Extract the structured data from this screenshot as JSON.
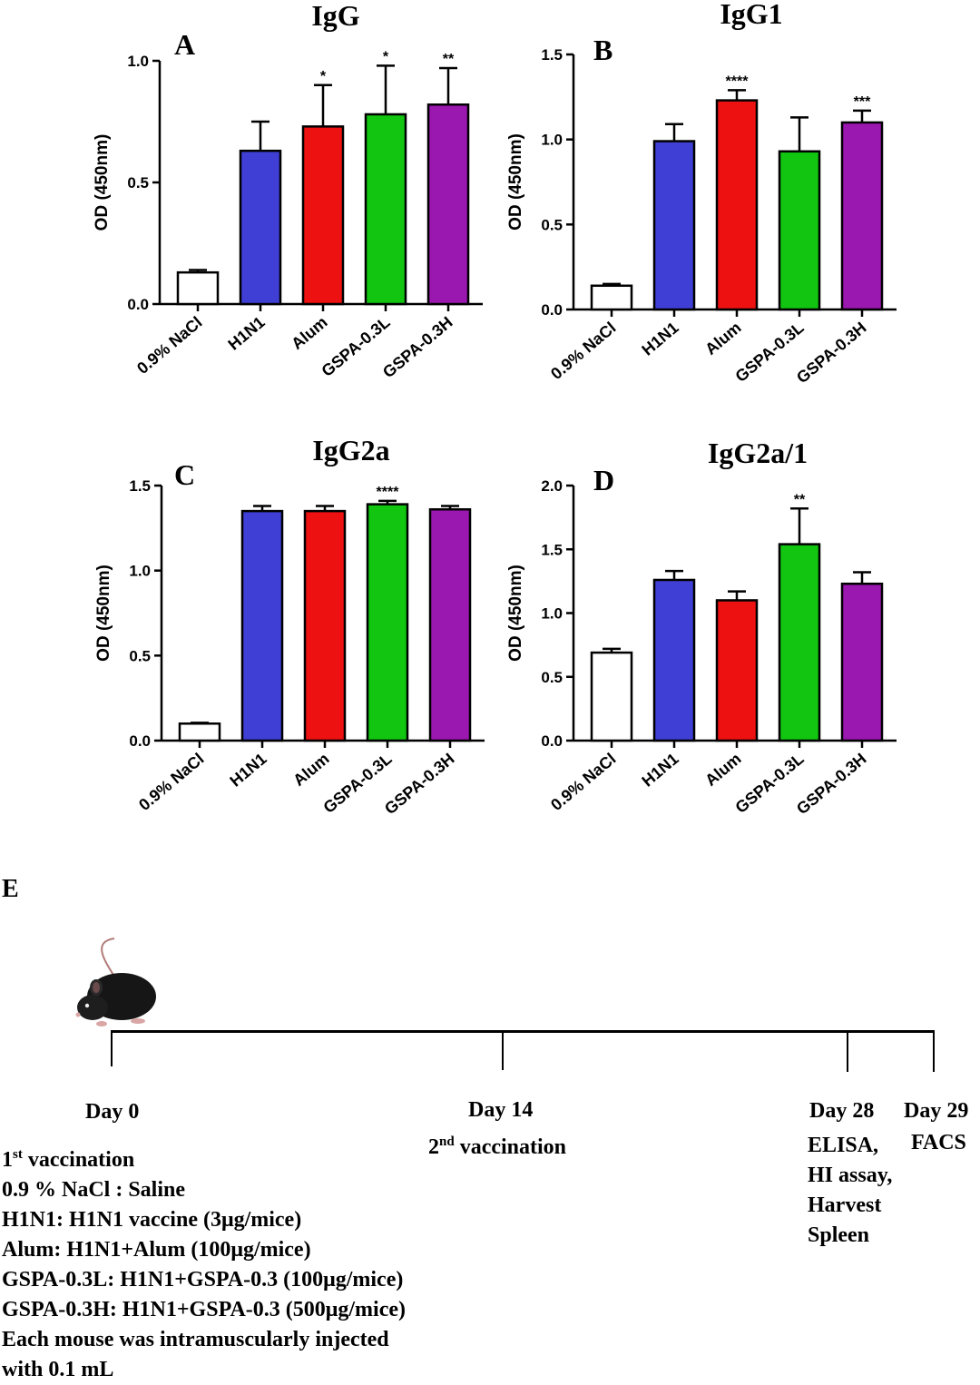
{
  "chart_data": [
    {
      "type": "bar",
      "panel": "A",
      "title": "IgG",
      "ylabel": "OD (450nm)",
      "ylim": [
        0,
        1.0
      ],
      "yticks": [
        "0.0",
        "0.5",
        "1.0"
      ],
      "categories": [
        "0.9% NaCl",
        "H1N1",
        "Alum",
        "GSPA-0.3L",
        "GSPA-0.3H"
      ],
      "values": [
        0.13,
        0.63,
        0.73,
        0.78,
        0.82
      ],
      "errors": [
        0.01,
        0.12,
        0.17,
        0.2,
        0.15
      ],
      "significance": [
        "",
        "",
        "*",
        "*",
        "**"
      ]
    },
    {
      "type": "bar",
      "panel": "B",
      "title": "IgG1",
      "ylabel": "OD (450nm)",
      "ylim": [
        0,
        1.5
      ],
      "yticks": [
        "0.0",
        "0.5",
        "1.0",
        "1.5"
      ],
      "categories": [
        "0.9% NaCl",
        "H1N1",
        "Alum",
        "GSPA-0.3L",
        "GSPA-0.3H"
      ],
      "values": [
        0.14,
        0.99,
        1.23,
        0.93,
        1.1
      ],
      "errors": [
        0.01,
        0.1,
        0.06,
        0.2,
        0.07
      ],
      "significance": [
        "",
        "",
        "****",
        "",
        "***"
      ]
    },
    {
      "type": "bar",
      "panel": "C",
      "title": "IgG2a",
      "ylabel": "OD (450nm)",
      "ylim": [
        0,
        1.5
      ],
      "yticks": [
        "0.0",
        "0.5",
        "1.0",
        "1.5"
      ],
      "categories": [
        "0.9% NaCl",
        "H1N1",
        "Alum",
        "GSPA-0.3L",
        "GSPA-0.3H"
      ],
      "values": [
        0.1,
        1.35,
        1.35,
        1.39,
        1.36
      ],
      "errors": [
        0.005,
        0.03,
        0.03,
        0.02,
        0.02
      ],
      "significance": [
        "",
        "",
        "",
        "****",
        ""
      ]
    },
    {
      "type": "bar",
      "panel": "D",
      "title": "IgG2a/1",
      "ylabel": "OD (450nm)",
      "ylim": [
        0,
        2.0
      ],
      "yticks": [
        "0.0",
        "0.5",
        "1.0",
        "1.5",
        "2.0"
      ],
      "categories": [
        "0.9% NaCl",
        "H1N1",
        "Alum",
        "GSPA-0.3L",
        "GSPA-0.3H"
      ],
      "values": [
        0.69,
        1.26,
        1.1,
        1.54,
        1.23
      ],
      "errors": [
        0.03,
        0.07,
        0.07,
        0.28,
        0.09
      ],
      "significance": [
        "",
        "",
        "",
        "**",
        ""
      ]
    }
  ],
  "colors": [
    "#ffffff",
    "#3f3fd6",
    "#ee1111",
    "#11c511",
    "#9a17b0"
  ],
  "timeline": {
    "panel": "E",
    "mouse_icon": "mouse-icon",
    "day0": "Day 0",
    "day14": "Day 14",
    "day14_event": "2",
    "day14_event_sup": "nd",
    "day14_event_rest": " vaccination",
    "day28": "Day 28",
    "day29": "Day 29",
    "day29_event": "FACS",
    "day28_events": [
      "ELISA,",
      "HI assay,",
      "Harvest",
      "Spleen"
    ],
    "legend_first_num": "1",
    "legend_first_sup": "st",
    "legend_first_rest": " vaccination",
    "legend": [
      "0.9 % NaCl : Saline",
      "H1N1: H1N1 vaccine (3μg/mice)",
      "Alum: H1N1+Alum (100μg/mice)",
      "GSPA-0.3L: H1N1+GSPA-0.3 (100μg/mice)",
      "GSPA-0.3H: H1N1+GSPA-0.3 (500μg/mice)",
      "Each mouse was intramuscularly injected",
      "with 0.1 mL"
    ]
  }
}
